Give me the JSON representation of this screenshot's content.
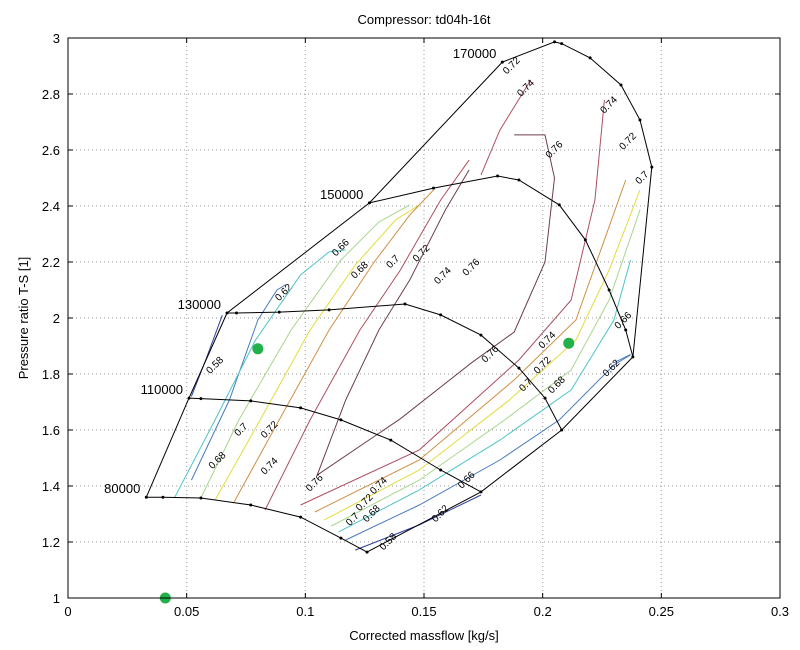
{
  "chart_data": {
    "type": "line",
    "title": "Compressor: td04h-16t",
    "xlabel": "Corrected massflow [kg/s]",
    "ylabel": "Pressure ratio T-S [1]",
    "xlim": [
      0,
      0.3
    ],
    "ylim": [
      1,
      3
    ],
    "xticks": [
      "0",
      "0.05",
      "0.1",
      "0.15",
      "0.2",
      "0.25",
      "0.3"
    ],
    "xtick_values": [
      0,
      0.05,
      0.1,
      0.15,
      0.2,
      0.25,
      0.3
    ],
    "yticks": [
      "1",
      "1.2",
      "1.4",
      "1.6",
      "1.8",
      "2",
      "2.2",
      "2.4",
      "2.6",
      "2.8",
      "3"
    ],
    "ytick_values": [
      1,
      1.2,
      1.4,
      1.6,
      1.8,
      2,
      2.2,
      2.4,
      2.6,
      2.8,
      3
    ],
    "grid": true,
    "speed_lines": [
      {
        "name": "80000",
        "points": [
          [
            0.033,
            1.36
          ],
          [
            0.04,
            1.36
          ],
          [
            0.056,
            1.357
          ],
          [
            0.077,
            1.332
          ],
          [
            0.098,
            1.289
          ],
          [
            0.115,
            1.214
          ],
          [
            0.126,
            1.164
          ]
        ]
      },
      {
        "name": "110000",
        "points": [
          [
            0.051,
            1.714
          ],
          [
            0.056,
            1.712
          ],
          [
            0.077,
            1.704
          ],
          [
            0.098,
            1.679
          ],
          [
            0.115,
            1.636
          ],
          [
            0.136,
            1.564
          ],
          [
            0.157,
            1.457
          ],
          [
            0.174,
            1.379
          ]
        ]
      },
      {
        "name": "130000",
        "points": [
          [
            0.067,
            2.018
          ],
          [
            0.071,
            2.018
          ],
          [
            0.089,
            2.021
          ],
          [
            0.11,
            2.029
          ],
          [
            0.142,
            2.05
          ],
          [
            0.157,
            2.011
          ],
          [
            0.174,
            1.939
          ],
          [
            0.19,
            1.821
          ],
          [
            0.201,
            1.714
          ],
          [
            0.208,
            1.6
          ]
        ]
      },
      {
        "name": "150000",
        "points": [
          [
            0.127,
            2.411
          ],
          [
            0.154,
            2.464
          ],
          [
            0.181,
            2.507
          ],
          [
            0.19,
            2.493
          ],
          [
            0.207,
            2.404
          ],
          [
            0.218,
            2.279
          ],
          [
            0.228,
            2.1
          ],
          [
            0.235,
            1.957
          ],
          [
            0.238,
            1.861
          ]
        ]
      },
      {
        "name": "170000",
        "points": [
          [
            0.183,
            2.914
          ],
          [
            0.205,
            2.986
          ],
          [
            0.208,
            2.98
          ],
          [
            0.22,
            2.929
          ],
          [
            0.233,
            2.832
          ],
          [
            0.241,
            2.707
          ],
          [
            0.246,
            2.539
          ]
        ]
      }
    ],
    "surge_line": [
      [
        0.033,
        1.36
      ],
      [
        0.051,
        1.714
      ],
      [
        0.067,
        2.018
      ],
      [
        0.127,
        2.411
      ],
      [
        0.183,
        2.914
      ]
    ],
    "choke_line": [
      [
        0.246,
        2.539
      ],
      [
        0.238,
        1.861
      ],
      [
        0.208,
        1.6
      ],
      [
        0.174,
        1.379
      ],
      [
        0.126,
        1.164
      ]
    ],
    "efficiency_contours": [
      {
        "level": "0.58",
        "color": "#2f3f9f",
        "points": [
          [
            0.121,
            1.171
          ],
          [
            0.148,
            1.261
          ],
          [
            0.174,
            1.368
          ]
        ],
        "label": [
          0.135,
          1.2
        ]
      },
      {
        "level": "0.58",
        "color": "#2f3f9f",
        "points": [
          [
            0.065,
            2.01
          ],
          [
            0.058,
            1.85
          ],
          [
            0.052,
            1.72
          ]
        ],
        "label": [
          0.062,
          1.83
        ]
      },
      {
        "level": "0.62",
        "color": "#4a7ac0",
        "points": [
          [
            0.052,
            1.421
          ],
          [
            0.068,
            1.707
          ],
          [
            0.08,
            1.993
          ],
          [
            0.088,
            2.1
          ],
          [
            0.092,
            2.12
          ]
        ],
        "label": [
          0.091,
          2.09
        ]
      },
      {
        "level": "0.62",
        "color": "#4a7ac0",
        "points": [
          [
            0.117,
            1.207
          ],
          [
            0.148,
            1.332
          ],
          [
            0.182,
            1.493
          ],
          [
            0.207,
            1.636
          ],
          [
            0.23,
            1.832
          ],
          [
            0.237,
            1.868
          ]
        ],
        "label": [
          0.157,
          1.3
        ]
      },
      {
        "level": "0.62",
        "color": "#4a7ac0",
        "points": [
          [
            0.23,
            1.84
          ],
          [
            0.237,
            1.87
          ]
        ],
        "label": [
          0.229,
          1.82
        ]
      },
      {
        "level": "0.66",
        "color": "#4cc4c8",
        "points": [
          [
            0.045,
            1.36
          ],
          [
            0.062,
            1.636
          ],
          [
            0.079,
            1.921
          ],
          [
            0.098,
            2.154
          ],
          [
            0.11,
            2.236
          ],
          [
            0.117,
            2.243
          ]
        ],
        "label": [
          0.115,
          2.25
        ]
      },
      {
        "level": "0.66",
        "color": "#4cc4c8",
        "points": [
          [
            0.114,
            1.236
          ],
          [
            0.148,
            1.386
          ],
          [
            0.182,
            1.564
          ],
          [
            0.212,
            1.743
          ],
          [
            0.23,
            1.993
          ],
          [
            0.237,
            2.207
          ]
        ],
        "label": [
          0.168,
          1.42
        ]
      },
      {
        "level": "0.66",
        "color": "#4cc4c8",
        "points": [
          [
            0.228,
            2.0
          ]
        ],
        "label": [
          0.234,
          1.99
        ]
      },
      {
        "level": "0.68",
        "color": "#a6d68c",
        "points": [
          [
            0.056,
            1.357
          ],
          [
            0.072,
            1.636
          ],
          [
            0.094,
            1.957
          ],
          [
            0.115,
            2.207
          ],
          [
            0.131,
            2.343
          ],
          [
            0.144,
            2.404
          ]
        ],
        "label": [
          0.123,
          2.17
        ]
      },
      {
        "level": "0.68",
        "color": "#a6d68c",
        "points": [
          [
            0.111,
            1.257
          ],
          [
            0.148,
            1.421
          ],
          [
            0.184,
            1.636
          ],
          [
            0.212,
            1.814
          ],
          [
            0.228,
            2.064
          ],
          [
            0.241,
            2.386
          ]
        ],
        "label": [
          0.128,
          1.3
        ]
      },
      {
        "level": "0.68",
        "color": "#a6d68c",
        "points": [
          [
            0.058,
            1.5
          ]
        ],
        "label": [
          0.063,
          1.49
        ]
      },
      {
        "level": "0.68",
        "color": "#a6d68c",
        "points": [
          [
            0.2,
            1.78
          ]
        ],
        "label": [
          0.206,
          1.76
        ]
      },
      {
        "level": "0.7",
        "color": "#e2dc3c",
        "points": [
          [
            0.062,
            1.35
          ],
          [
            0.081,
            1.636
          ],
          [
            0.102,
            1.957
          ],
          [
            0.121,
            2.189
          ],
          [
            0.138,
            2.35
          ],
          [
            0.148,
            2.404
          ]
        ],
        "label": [
          0.137,
          2.2
        ]
      },
      {
        "level": "0.7",
        "color": "#e2dc3c",
        "points": [
          [
            0.108,
            1.279
          ],
          [
            0.148,
            1.457
          ],
          [
            0.186,
            1.707
          ],
          [
            0.214,
            1.921
          ],
          [
            0.228,
            2.171
          ],
          [
            0.241,
            2.457
          ]
        ],
        "label": [
          0.12,
          1.28
        ]
      },
      {
        "level": "0.7",
        "color": "#e2dc3c",
        "points": [
          [
            0.068,
            1.6
          ]
        ],
        "label": [
          0.073,
          1.6
        ]
      },
      {
        "level": "0.7",
        "color": "#e2dc3c",
        "points": [
          [
            0.196,
            1.77
          ]
        ],
        "label": [
          0.193,
          1.76
        ]
      },
      {
        "level": "0.7",
        "color": "#e2dc3c",
        "points": [
          [
            0.242,
            2.48
          ]
        ],
        "label": [
          0.242,
          2.5
        ]
      },
      {
        "level": "0.72",
        "color": "#cf8f43",
        "points": [
          [
            0.07,
            1.343
          ],
          [
            0.089,
            1.636
          ],
          [
            0.11,
            1.957
          ],
          [
            0.129,
            2.2
          ],
          [
            0.144,
            2.368
          ],
          [
            0.154,
            2.457
          ]
        ],
        "label": [
          0.149,
          2.23
        ]
      },
      {
        "level": "0.72",
        "color": "#cf8f43",
        "points": [
          [
            0.104,
            1.307
          ],
          [
            0.148,
            1.493
          ],
          [
            0.188,
            1.779
          ],
          [
            0.214,
            1.993
          ],
          [
            0.226,
            2.279
          ],
          [
            0.235,
            2.493
          ]
        ],
        "label": [
          0.125,
          1.34
        ]
      },
      {
        "level": "0.72",
        "color": "#cf8f43",
        "points": [
          [
            0.078,
            1.6
          ]
        ],
        "label": [
          0.085,
          1.6
        ]
      },
      {
        "level": "0.72",
        "color": "#cf8f43",
        "points": [
          [
            0.2,
            1.83
          ]
        ],
        "label": [
          0.2,
          1.83
        ]
      },
      {
        "level": "0.72",
        "color": "#cf8f43",
        "points": [
          [
            0.228,
            2.6
          ]
        ],
        "label": [
          0.236,
          2.63
        ]
      },
      {
        "level": "0.72",
        "color": "#cf8f43",
        "points": [
          [
            0.19,
            2.9
          ]
        ],
        "label": [
          0.187,
          2.9
        ]
      },
      {
        "level": "0.74",
        "color": "#ad4f5e",
        "points": [
          [
            0.083,
            1.314
          ],
          [
            0.102,
            1.636
          ],
          [
            0.123,
            1.957
          ],
          [
            0.14,
            2.171
          ],
          [
            0.157,
            2.421
          ],
          [
            0.169,
            2.564
          ]
        ],
        "label": [
          0.158,
          2.15
        ]
      },
      {
        "level": "0.74",
        "color": "#ad4f5e",
        "points": [
          [
            0.098,
            1.332
          ],
          [
            0.148,
            1.529
          ],
          [
            0.19,
            1.85
          ],
          [
            0.212,
            2.064
          ],
          [
            0.222,
            2.421
          ],
          [
            0.226,
            2.779
          ]
        ],
        "label": [
          0.131,
          1.4
        ]
      },
      {
        "level": "0.74",
        "color": "#ad4f5e",
        "points": [
          [
            0.174,
            2.511
          ],
          [
            0.182,
            2.671
          ],
          [
            0.195,
            2.85
          ]
        ],
        "label": [
          0.193,
          2.82
        ]
      },
      {
        "level": "0.74",
        "color": "#ad4f5e",
        "points": [
          [
            0.085,
            1.5
          ]
        ],
        "label": [
          0.085,
          1.47
        ]
      },
      {
        "level": "0.74",
        "color": "#ad4f5e",
        "points": [
          [
            0.204,
            1.93
          ]
        ],
        "label": [
          0.202,
          1.92
        ]
      },
      {
        "level": "0.74",
        "color": "#ad4f5e",
        "points": [
          [
            0.228,
            2.78
          ]
        ],
        "label": [
          0.228,
          2.76
        ]
      },
      {
        "level": "0.76",
        "color": "#6e3e4e",
        "points": [
          [
            0.105,
            1.439
          ],
          [
            0.117,
            1.707
          ],
          [
            0.131,
            1.957
          ],
          [
            0.144,
            2.136
          ],
          [
            0.159,
            2.386
          ],
          [
            0.169,
            2.529
          ]
        ],
        "label": [
          0.17,
          2.18
        ]
      },
      {
        "level": "0.76",
        "color": "#6e3e4e",
        "points": [
          [
            0.105,
            1.439
          ],
          [
            0.14,
            1.64
          ],
          [
            0.17,
            1.84
          ],
          [
            0.188,
            1.95
          ],
          [
            0.201,
            2.2
          ],
          [
            0.205,
            2.5
          ],
          [
            0.201,
            2.654
          ],
          [
            0.188,
            2.654
          ]
        ],
        "label": [
          0.178,
          1.87
        ]
      },
      {
        "level": "0.76",
        "color": "#6e3e4e",
        "points": [
          [
            0.105,
            1.45
          ]
        ],
        "label": [
          0.104,
          1.41
        ]
      },
      {
        "level": "0.76",
        "color": "#6e3e4e",
        "points": [
          [
            0.205,
            2.6
          ]
        ],
        "label": [
          0.205,
          2.6
        ]
      }
    ],
    "operating_points": [
      {
        "x": 0.041,
        "y": 1.0
      },
      {
        "x": 0.08,
        "y": 1.89
      },
      {
        "x": 0.211,
        "y": 1.91
      }
    ],
    "operating_point_color": "#22b04a"
  }
}
